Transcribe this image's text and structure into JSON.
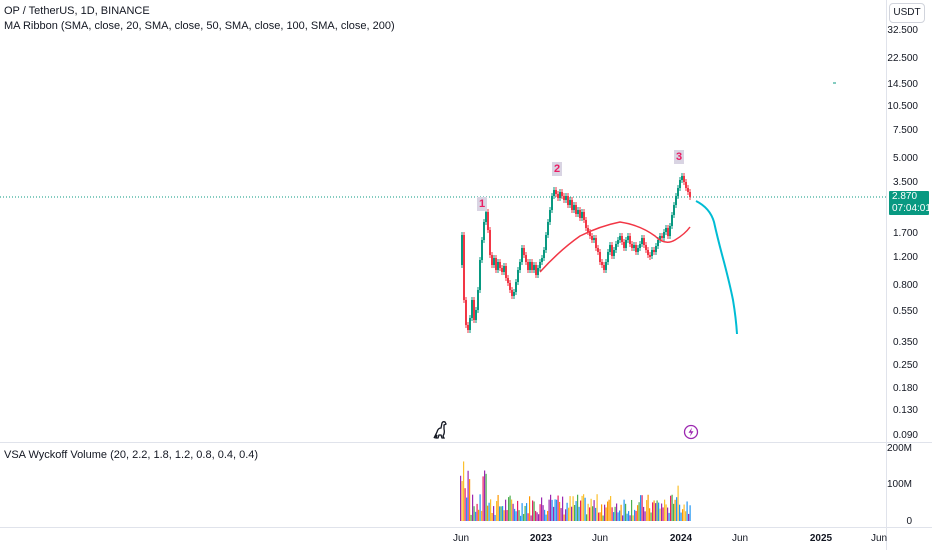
{
  "header": {
    "symbol_title": "OP / TetherUS, 1D, BINANCE",
    "indicator_1": "MA Ribbon (SMA, close, 20, SMA, close, 50, SMA, close, 100, SMA, close, 200)",
    "currency_button": "USDT"
  },
  "price_axis": {
    "labels": [
      "32.500",
      "22.500",
      "14.500",
      "10.500",
      "7.500",
      "5.000",
      "3.500",
      "1.700",
      "1.200",
      "0.800",
      "0.550",
      "0.350",
      "0.250",
      "0.180",
      "0.130",
      "0.090"
    ],
    "last_price": "2.870",
    "countdown": "07:04:01"
  },
  "volume_pane": {
    "title": "VSA Wyckoff Volume (20, 2.2, 1.8, 1.2, 0.8, 0.4, 0.4)",
    "axis_labels": [
      "200M",
      "100M",
      "0"
    ]
  },
  "time_axis": {
    "labels": [
      "Jun",
      "2023",
      "Jun",
      "2024",
      "Jun",
      "2025",
      "Jun"
    ],
    "bold": [
      false,
      true,
      false,
      true,
      false,
      true,
      false
    ]
  },
  "wave_labels": [
    "1",
    "2",
    "3"
  ],
  "icons": {
    "dino": "dino-icon",
    "lightning": "lightning-icon"
  },
  "colors": {
    "up_candle": "#089981",
    "down_candle": "#f23645",
    "ma_line": "#f23645",
    "projection": "#00bcd4",
    "volume_colors": [
      "#9c27b0",
      "#ff9800",
      "#2196f3",
      "#fbc02d",
      "#e91e63",
      "#4caf50"
    ],
    "wave_text": "#e91e63"
  }
}
